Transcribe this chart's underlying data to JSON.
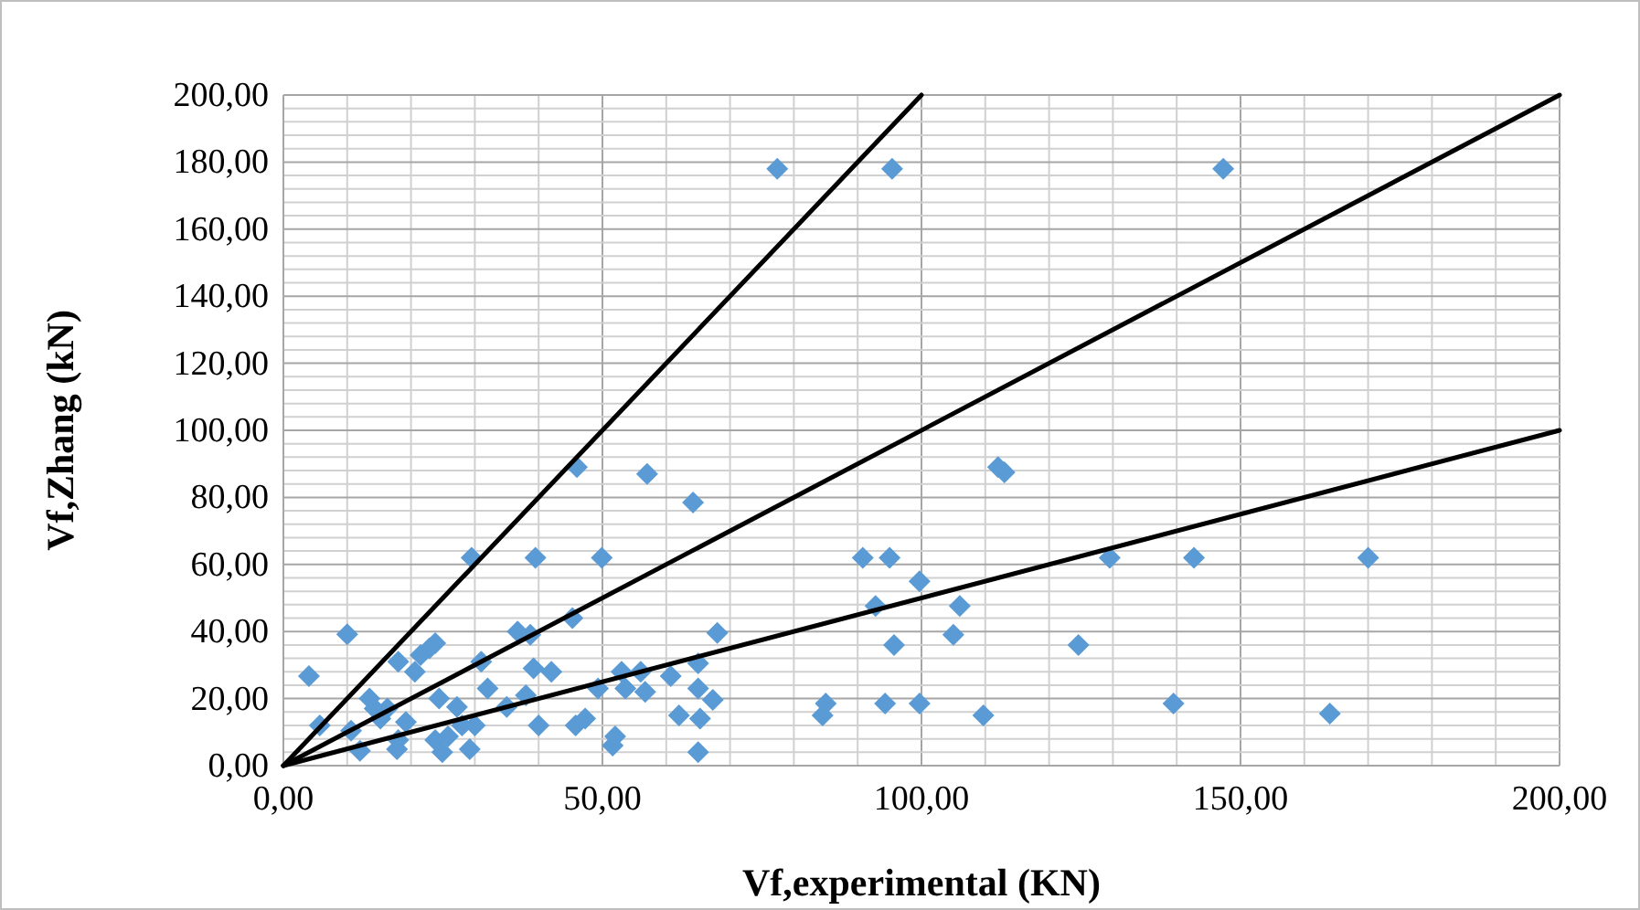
{
  "chart_data": {
    "type": "scatter",
    "xlabel": "Vf,experimental (KN)",
    "ylabel": "Vf,Zhang (kN)",
    "xlim": [
      0,
      200
    ],
    "ylim": [
      0,
      200
    ],
    "xticks": [
      {
        "value": 0,
        "label": "0,00"
      },
      {
        "value": 50,
        "label": "50,00"
      },
      {
        "value": 100,
        "label": "100,00"
      },
      {
        "value": 150,
        "label": "150,00"
      },
      {
        "value": 200,
        "label": "200,00"
      }
    ],
    "yticks": [
      {
        "value": 0,
        "label": "0,00"
      },
      {
        "value": 20,
        "label": "20,00"
      },
      {
        "value": 40,
        "label": "40,00"
      },
      {
        "value": 60,
        "label": "60,00"
      },
      {
        "value": 80,
        "label": "80,00"
      },
      {
        "value": 100,
        "label": "100,00"
      },
      {
        "value": 120,
        "label": "120,00"
      },
      {
        "value": 140,
        "label": "140,00"
      },
      {
        "value": 160,
        "label": "160,00"
      },
      {
        "value": 180,
        "label": "180,00"
      },
      {
        "value": 200,
        "label": "200,00"
      }
    ],
    "grid": true,
    "series": [
      {
        "marker": "diamond",
        "color": "#5b9bd5",
        "x": [
          4,
          5.7,
          10,
          10.6,
          12,
          13.5,
          14.3,
          15.2,
          16.3,
          18,
          18,
          17.8,
          19.2,
          20.6,
          21.5,
          22.9,
          23.8,
          24.4,
          23.8,
          24.9,
          25.8,
          27.2,
          28,
          29.2,
          29.5,
          30,
          31,
          32,
          35,
          36.7,
          38.7,
          39.2,
          39.5,
          38,
          40,
          42,
          45.3,
          45.8,
          47.3,
          49.3,
          49.9,
          51.6,
          52,
          53.6,
          53,
          56,
          56.7,
          46,
          57,
          64.2,
          60.7,
          62,
          65,
          65,
          65.3,
          65,
          67.3,
          68,
          90.8,
          95,
          99.7,
          92.8,
          106,
          95.7,
          105,
          124.6,
          129.5,
          142.7,
          112,
          113,
          85,
          84.5,
          94.3,
          99.7,
          109.7,
          139.5,
          170,
          164,
          77.4,
          95.4,
          147.3
        ],
        "values": [
          26.7,
          12,
          39.2,
          10.4,
          4.4,
          20,
          17,
          14,
          17,
          31,
          7.6,
          4.9,
          13,
          28,
          33,
          35,
          36.5,
          20,
          7.6,
          4,
          8.7,
          17.5,
          12,
          4.9,
          62,
          12,
          31,
          23,
          17.5,
          40,
          39,
          29,
          62,
          21,
          12,
          28,
          44,
          12,
          14,
          23,
          62,
          6,
          8.7,
          23,
          28,
          28,
          22,
          89,
          87,
          78.5,
          26.7,
          15,
          30.5,
          23,
          14,
          4,
          19.6,
          39.6,
          62,
          62,
          55,
          47.6,
          47.6,
          36,
          39,
          36,
          62,
          62,
          89,
          87.5,
          18.5,
          15,
          18.5,
          18.5,
          15,
          18.5,
          62,
          15.5,
          178,
          178,
          178
        ]
      },
      {
        "type": "line",
        "color": "#000000",
        "x": [
          0,
          100
        ],
        "values": [
          0,
          200
        ]
      },
      {
        "type": "line",
        "color": "#000000",
        "x": [
          0,
          200
        ],
        "values": [
          0,
          200
        ]
      },
      {
        "type": "line",
        "color": "#000000",
        "x": [
          0,
          200
        ],
        "values": [
          0,
          100
        ]
      }
    ]
  }
}
